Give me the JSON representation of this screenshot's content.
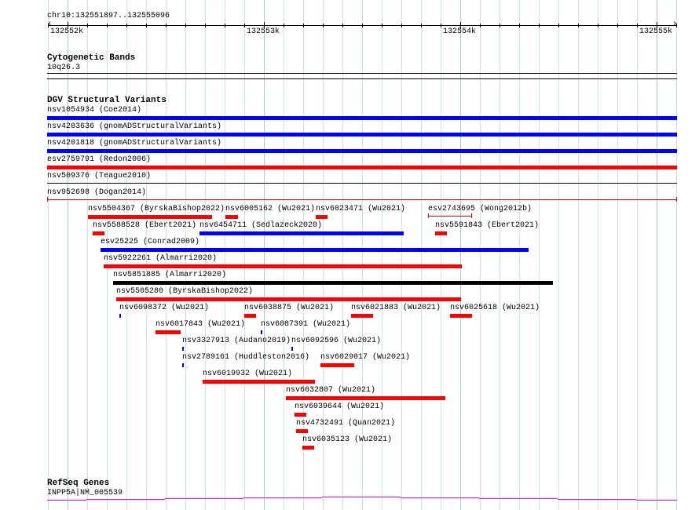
{
  "ruler": {
    "location": "chr10:132551897..132555096",
    "ticks": [
      "132552k",
      "132553k",
      "132554k",
      "132555k"
    ]
  },
  "cytoband": {
    "title": "Cytogenetic Bands",
    "band": "10q26.3"
  },
  "dgv": {
    "title": "DGV Structural Variants",
    "colors": {
      "red": "#ff0000",
      "blue": "#0000ff",
      "black": "#000000"
    },
    "features": [
      {
        "label": "nsv1054934 (Coe2014)",
        "color": "#0000ff"
      },
      {
        "label": "nsv4203636 (gnomADStructuralVariants)",
        "color": "#0000ff"
      },
      {
        "label": "nsv4201818 (gnomADStructuralVariants)",
        "color": "#0000ff"
      },
      {
        "label": "esv2759791 (Redon2006)",
        "color": "#ff0000"
      },
      {
        "label": "nsv509376 (Teague2010)",
        "color": "#000000"
      },
      {
        "label": "nsv952698 (Dogan2014)",
        "color": "#ff0000"
      },
      {
        "label": "nsv5504367 (ByrskaBishop2022)",
        "color": "#ff0000"
      },
      {
        "label": "nsv6005162 (Wu2021)",
        "color": "#ff0000"
      },
      {
        "label": "nsv6023471 (Wu2021)",
        "color": "#ff0000"
      },
      {
        "label": "esv2743695 (Wong2012b)",
        "color": "#ff0000"
      },
      {
        "label": "nsv5588528 (Ebert2021)",
        "color": "#ff0000"
      },
      {
        "label": "nsv6454711 (Sedlazeck2020)",
        "color": "#0000ff"
      },
      {
        "label": "nsv5591843 (Ebert2021)",
        "color": "#ff0000"
      },
      {
        "label": "esv25225 (Conrad2009)",
        "color": "#0000ff"
      },
      {
        "label": "nsv5922261 (Almarri2020)",
        "color": "#ff0000"
      },
      {
        "label": "nsv5851885 (Almarri2020)",
        "color": "#000000"
      },
      {
        "label": "nsv5505280 (ByrskaBishop2022)",
        "color": "#ff0000"
      },
      {
        "label": "nsv6098372 (Wu2021)",
        "color": "#0000ff"
      },
      {
        "label": "nsv6038875 (Wu2021)",
        "color": "#ff0000"
      },
      {
        "label": "nsv6021883 (Wu2021)",
        "color": "#ff0000"
      },
      {
        "label": "nsv6025618 (Wu2021)",
        "color": "#ff0000"
      },
      {
        "label": "nsv6017843 (Wu2021)",
        "color": "#ff0000"
      },
      {
        "label": "nsv6087391 (Wu2021)",
        "color": "#0000ff"
      },
      {
        "label": "nsv3327913 (Audano2019)",
        "color": "#0000ff"
      },
      {
        "label": "nsv6092596 (Wu2021)",
        "color": "#0000ff"
      },
      {
        "label": "nsv2789161 (Huddleston2016)",
        "color": "#0000ff"
      },
      {
        "label": "nsv6029017 (Wu2021)",
        "color": "#ff0000"
      },
      {
        "label": "nsv6019932 (Wu2021)",
        "color": "#ff0000"
      },
      {
        "label": "nsv6032807 (Wu2021)",
        "color": "#ff0000"
      },
      {
        "label": "nsv6039644 (Wu2021)",
        "color": "#ff0000"
      },
      {
        "label": "nsv4732491 (Quan2021)",
        "color": "#ff0000"
      },
      {
        "label": "nsv6035123 (Wu2021)",
        "color": "#ff0000"
      }
    ]
  },
  "refseq": {
    "title": "RefSeq Genes",
    "gene": "INPP5A|NM_005539",
    "color": "#ff00ff"
  }
}
